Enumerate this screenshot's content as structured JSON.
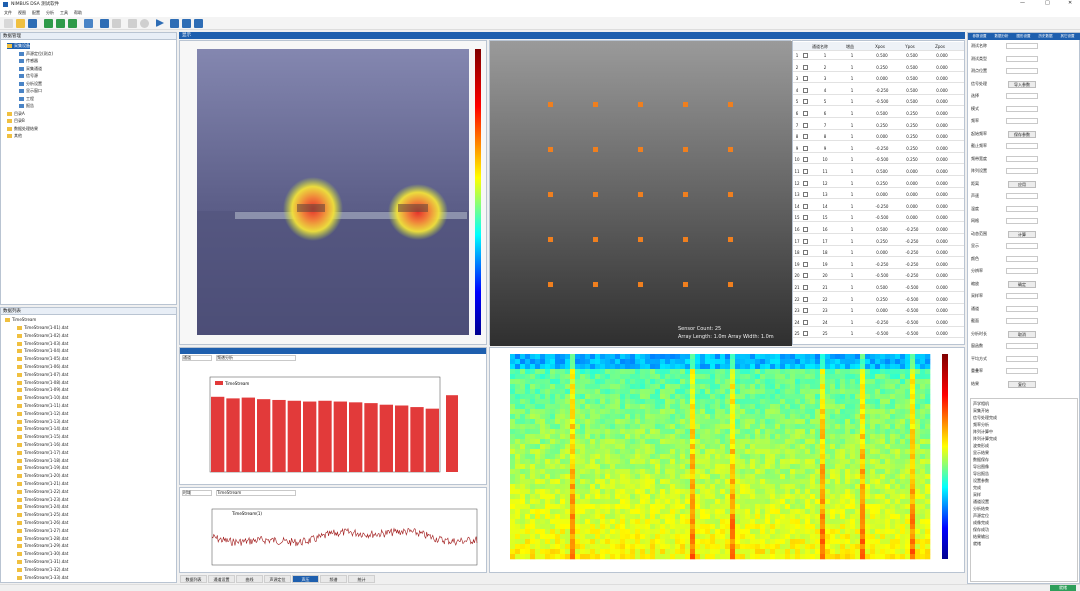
{
  "window": {
    "title": "NIMBUS DSA 测试软件",
    "controls": [
      "—",
      "□",
      "✕"
    ]
  },
  "menu": [
    "文件",
    "视图",
    "配置",
    "分析",
    "工具",
    "帮助"
  ],
  "toolbar_icons": [
    "new-icon",
    "open-icon",
    "save-icon",
    "copy-icon",
    "paste-icon",
    "export-icon",
    "grid-icon",
    "settings-icon",
    "trash-icon",
    "play-icon",
    "stop-icon",
    "record-icon",
    "save-data-icon"
  ],
  "left_panel": {
    "title": "数据管理",
    "tree": [
      "采集设备",
      "声源定位(测点)",
      "传感器",
      "采集通道",
      "信号源",
      "分析设置",
      "显示窗口",
      "工程",
      "报告",
      "目录A",
      "目录B",
      "数据处理结果",
      "其他"
    ]
  },
  "file_panel": {
    "title": "数据列表",
    "root": "TimeStream",
    "files": [
      "TimeStream(1-01).dat",
      "TimeStream(1-02).dat",
      "TimeStream(1-03).dat",
      "TimeStream(1-04).dat",
      "TimeStream(1-05).dat",
      "TimeStream(1-06).dat",
      "TimeStream(1-07).dat",
      "TimeStream(1-08).dat",
      "TimeStream(1-09).dat",
      "TimeStream(1-10).dat",
      "TimeStream(1-11).dat",
      "TimeStream(1-12).dat",
      "TimeStream(1-13).dat",
      "TimeStream(1-14).dat",
      "TimeStream(1-15).dat",
      "TimeStream(1-16).dat",
      "TimeStream(1-17).dat",
      "TimeStream(1-18).dat",
      "TimeStream(1-19).dat",
      "TimeStream(1-20).dat",
      "TimeStream(1-21).dat",
      "TimeStream(1-22).dat",
      "TimeStream(1-23).dat",
      "TimeStream(1-24).dat",
      "TimeStream(1-25).dat",
      "TimeStream(1-26).dat",
      "TimeStream(1-27).dat",
      "TimeStream(1-28).dat",
      "TimeStream(1-29).dat",
      "TimeStream(1-30).dat",
      "TimeStream(1-31).dat",
      "TimeStream(1-32).dat",
      "TimeStream(1-33).dat"
    ]
  },
  "center_title": "显示",
  "acoustic": {
    "colorbar_ticks": [
      "",
      "",
      "",
      "",
      "",
      "",
      ""
    ]
  },
  "array": {
    "caption1": "Sensor Count: 25",
    "caption2": "Array Length: 1.0m  Array Width: 1.0m"
  },
  "table": {
    "headers": [
      "",
      "",
      "通道名称",
      "增益",
      "Xpos",
      "Ypos",
      "Zpos"
    ],
    "rows": [
      [
        "1",
        "1",
        "1",
        "0.500",
        "0.500",
        "0.000"
      ],
      [
        "2",
        "2",
        "1",
        "0.250",
        "0.500",
        "0.000"
      ],
      [
        "3",
        "3",
        "1",
        "0.000",
        "0.500",
        "0.000"
      ],
      [
        "4",
        "4",
        "1",
        "-0.250",
        "0.500",
        "0.000"
      ],
      [
        "5",
        "5",
        "1",
        "-0.500",
        "0.500",
        "0.000"
      ],
      [
        "6",
        "6",
        "1",
        "0.500",
        "0.250",
        "0.000"
      ],
      [
        "7",
        "7",
        "1",
        "0.250",
        "0.250",
        "0.000"
      ],
      [
        "8",
        "8",
        "1",
        "0.000",
        "0.250",
        "0.000"
      ],
      [
        "9",
        "9",
        "1",
        "-0.250",
        "0.250",
        "0.000"
      ],
      [
        "10",
        "10",
        "1",
        "-0.500",
        "0.250",
        "0.000"
      ],
      [
        "11",
        "11",
        "1",
        "0.500",
        "0.000",
        "0.000"
      ],
      [
        "12",
        "12",
        "1",
        "0.250",
        "0.000",
        "0.000"
      ],
      [
        "13",
        "13",
        "1",
        "0.000",
        "0.000",
        "0.000"
      ],
      [
        "14",
        "14",
        "1",
        "-0.250",
        "0.000",
        "0.000"
      ],
      [
        "15",
        "15",
        "1",
        "-0.500",
        "0.000",
        "0.000"
      ],
      [
        "16",
        "16",
        "1",
        "0.500",
        "-0.250",
        "0.000"
      ],
      [
        "17",
        "17",
        "1",
        "0.250",
        "-0.250",
        "0.000"
      ],
      [
        "18",
        "18",
        "1",
        "0.000",
        "-0.250",
        "0.000"
      ],
      [
        "19",
        "19",
        "1",
        "-0.250",
        "-0.250",
        "0.000"
      ],
      [
        "20",
        "20",
        "1",
        "-0.500",
        "-0.250",
        "0.000"
      ],
      [
        "21",
        "21",
        "1",
        "0.500",
        "-0.500",
        "0.000"
      ],
      [
        "22",
        "22",
        "1",
        "0.250",
        "-0.500",
        "0.000"
      ],
      [
        "23",
        "23",
        "1",
        "0.000",
        "-0.500",
        "0.000"
      ],
      [
        "24",
        "24",
        "1",
        "-0.250",
        "-0.500",
        "0.000"
      ],
      [
        "25",
        "25",
        "1",
        "-0.500",
        "-0.500",
        "0.000"
      ]
    ]
  },
  "right_panel": {
    "tabs": [
      "参数设置",
      "数据分析",
      "图形设置",
      "历史数据",
      "其它设置"
    ],
    "labels": [
      "测试名称",
      "测试类型",
      "测点位置",
      "信号处理",
      "选择",
      "模式",
      "频率",
      "起始频率",
      "截止频率",
      "频带宽度",
      "阵列设置",
      "距离",
      "声速",
      "温度",
      "网格",
      "动态范围",
      "显示",
      "颜色",
      "分辨率",
      "缩放",
      "采样率",
      "通道",
      "截面",
      "分析时长",
      "窗函数",
      "平均方式",
      "重叠率",
      "结果"
    ],
    "buttons": [
      "导入参数",
      "保存参数",
      "应用",
      "计算",
      "确定",
      "取消",
      "复位",
      "开始",
      "停止",
      "设置",
      "清除"
    ],
    "log_lines": [
      "声学相机",
      "采集开始",
      "信号处理完成",
      "频率分析",
      "阵列计算中",
      "阵列计算完成",
      "波束形成",
      "显示结果",
      "数据保存",
      "导出图像",
      "导出报告",
      "设置参数",
      "完成",
      "采样",
      "通道设置",
      "分析结束",
      "声源定位",
      "成像完成",
      "保存成功",
      "结果输出",
      "就绪"
    ]
  },
  "bar_panel": {
    "dropdowns": [
      "通道",
      "频谱分析"
    ],
    "legend": "TimeStream"
  },
  "line_panel": {
    "dropdowns": [
      "时域",
      "TimeStream"
    ],
    "legend": "TimeStream(1)"
  },
  "bottom_tabs": [
    "数据列表",
    "通道设置",
    "曲线",
    "声源定位",
    "声压",
    "频谱",
    "统计"
  ],
  "status": {
    "right": "就绪"
  },
  "chart_data": [
    {
      "type": "bar",
      "categories": [
        "1",
        "2",
        "3",
        "4",
        "5",
        "6",
        "7",
        "8",
        "9",
        "10",
        "11",
        "12",
        "13",
        "14",
        "15"
      ],
      "values": [
        95,
        93,
        94,
        92,
        91,
        90,
        89,
        90,
        89,
        88,
        87,
        85,
        84,
        82,
        80
      ],
      "extra_value": 97,
      "ylim": [
        0,
        120
      ]
    },
    {
      "type": "line",
      "series": [
        {
          "name": "TimeStream(1)"
        }
      ],
      "ylim": [
        -50,
        50
      ]
    },
    {
      "type": "heatmap",
      "colormap": "jet"
    }
  ],
  "colors": {
    "accent": "#1e5fae",
    "bar": "#e23a3a",
    "marker": "#f07f1e"
  }
}
